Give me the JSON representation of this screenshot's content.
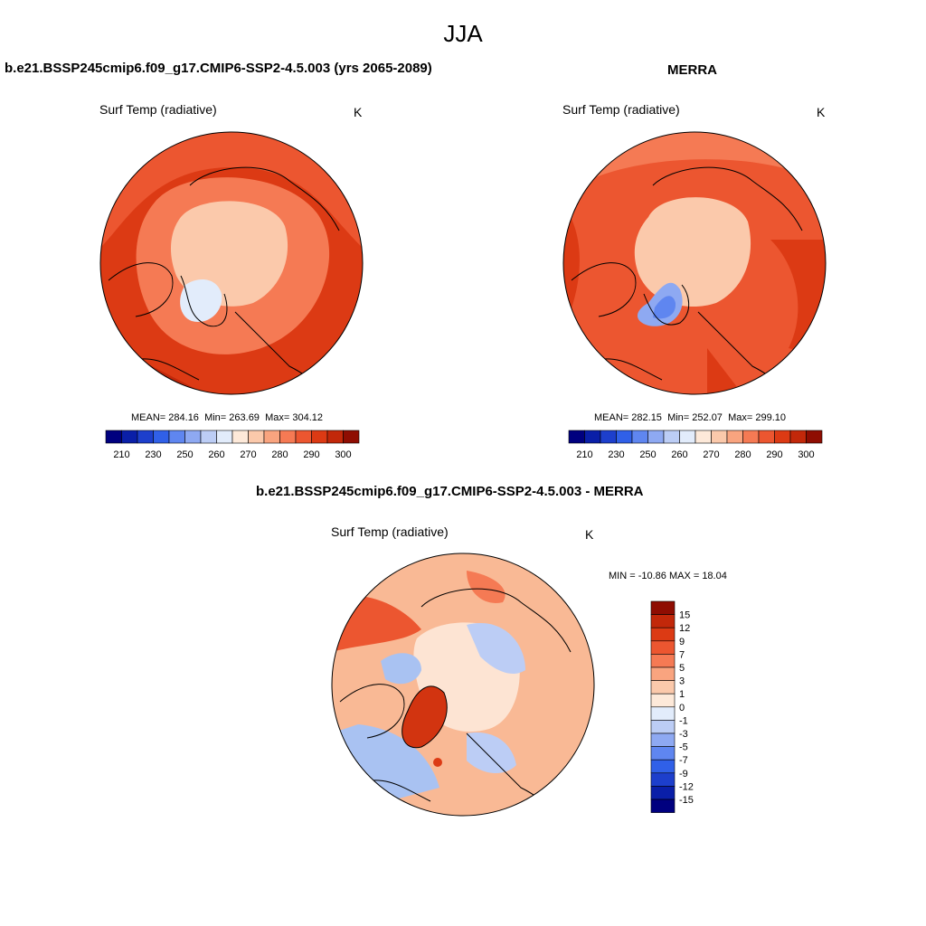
{
  "page": {
    "title": "JJA"
  },
  "panels": [
    {
      "id": "model",
      "title": "b.e21.BSSP245cmip6.f09_g17.CMIP6-SSP2-4.5.003 (yrs 2065-2089)",
      "variable": "Surf Temp (radiative)",
      "units": "K",
      "stats": {
        "mean": "284.16",
        "min": "263.69",
        "max": "304.12"
      }
    },
    {
      "id": "obs",
      "title": "MERRA",
      "variable": "Surf Temp (radiative)",
      "units": "K",
      "stats": {
        "mean": "282.15",
        "min": "252.07",
        "max": "299.10"
      }
    }
  ],
  "diff_panel": {
    "title": "b.e21.BSSP245cmip6.f09_g17.CMIP6-SSP2-4.5.003 - MERRA",
    "variable": "Surf Temp (radiative)",
    "units": "K",
    "minmax": "MIN = -10.86 MAX =  18.04"
  },
  "labels": {
    "mean": "MEAN=",
    "min": "Min=",
    "max": "Max="
  },
  "abs_colorbar": {
    "colors": [
      "#00007f",
      "#0a1fa8",
      "#1d3fcc",
      "#3060e8",
      "#5f86f0",
      "#8ea9f2",
      "#bccdf5",
      "#e2ecfb",
      "#fde9d9",
      "#fbc9ab",
      "#f9a47f",
      "#f57a54",
      "#ec5630",
      "#dc3a14",
      "#c2280a",
      "#8f0d02"
    ],
    "ticks": [
      "210",
      "230",
      "250",
      "260",
      "270",
      "280",
      "290",
      "300"
    ]
  },
  "diff_colorbar": {
    "colors": [
      "#8f0d02",
      "#c2280a",
      "#dc3a14",
      "#ec5630",
      "#f57a54",
      "#f9a47f",
      "#fbc9ab",
      "#fde9d9",
      "#e2ecfb",
      "#bccdf5",
      "#8ea9f2",
      "#5f86f0",
      "#3060e8",
      "#1d3fcc",
      "#0a1fa8",
      "#00007f"
    ],
    "ticks": [
      "15",
      "12",
      "9",
      "7",
      "5",
      "3",
      "1",
      "0",
      "-1",
      "-3",
      "-5",
      "-7",
      "-9",
      "-12",
      "-15"
    ]
  },
  "map_colors": {
    "warm_dark": "#dc3a14",
    "warm_mid": "#ec5630",
    "warm_light": "#f57a54",
    "pale": "#fbc9ab",
    "ice_cold": "#bccdf5",
    "ice_blue": "#8ea9f2",
    "diff_bg": "#f9b995",
    "diff_pale": "#fde4d3",
    "diff_blue": "#a9c2f2",
    "diff_hot": "#d23410"
  }
}
